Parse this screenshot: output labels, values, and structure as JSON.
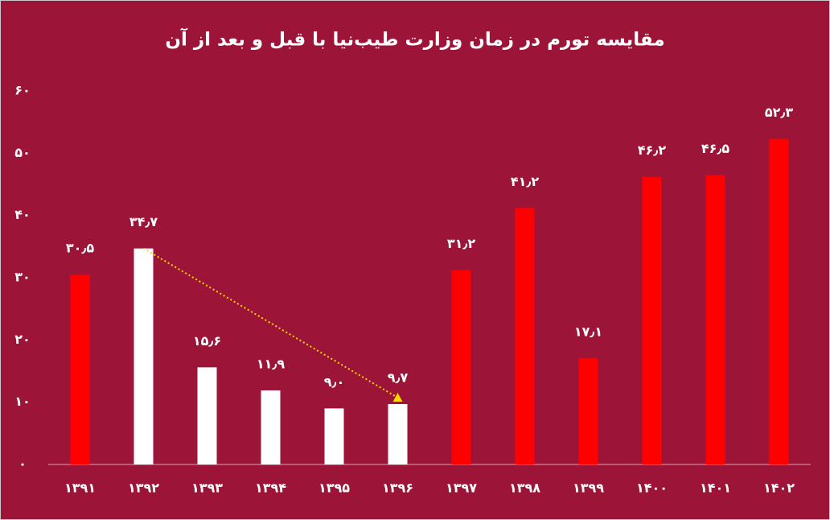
{
  "chart_data": {
    "type": "bar",
    "title": "مقایسه تورم در زمان وزارت طیب‌نیا با قبل و بعد از آن",
    "categories": [
      "۱۳۹۱",
      "۱۳۹۲",
      "۱۳۹۳",
      "۱۳۹۴",
      "۱۳۹۵",
      "۱۳۹۶",
      "۱۳۹۷",
      "۱۳۹۸",
      "۱۳۹۹",
      "۱۴۰۰",
      "۱۴۰۱",
      "۱۴۰۲"
    ],
    "values": [
      30.5,
      34.7,
      15.6,
      11.9,
      9.0,
      9.7,
      31.2,
      41.2,
      17.1,
      46.2,
      46.5,
      52.3
    ],
    "value_labels": [
      "۳۰٫۵",
      "۳۴٫۷",
      "۱۵٫۶",
      "۱۱٫۹",
      "۹٫۰",
      "۹٫۷",
      "۳۱٫۲",
      "۴۱٫۲",
      "۱۷٫۱",
      "۴۶٫۲",
      "۴۶٫۵",
      "۵۲٫۳"
    ],
    "colors": [
      "#ff0000",
      "#ffffff",
      "#ffffff",
      "#ffffff",
      "#ffffff",
      "#ffffff",
      "#ff0000",
      "#ff0000",
      "#ff0000",
      "#ff0000",
      "#ff0000",
      "#ff0000"
    ],
    "ylim": [
      0,
      60
    ],
    "yticks": [
      {
        "value": 0,
        "label": "۰"
      },
      {
        "value": 10,
        "label": "۱۰"
      },
      {
        "value": 20,
        "label": "۲۰"
      },
      {
        "value": 30,
        "label": "۳۰"
      },
      {
        "value": 40,
        "label": "۴۰"
      },
      {
        "value": 50,
        "label": "۵۰"
      },
      {
        "value": 60,
        "label": "۶۰"
      }
    ],
    "grid": false
  }
}
